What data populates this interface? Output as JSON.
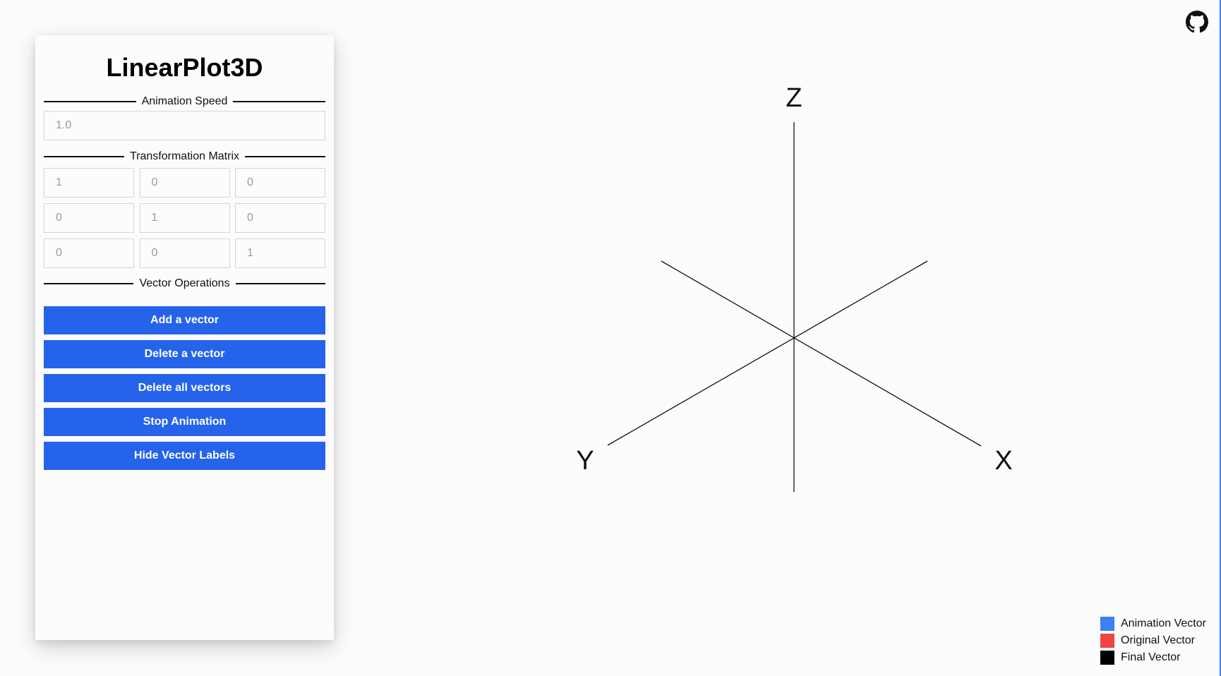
{
  "app": {
    "title": "LinearPlot3D"
  },
  "sections": {
    "animation_speed": "Animation Speed",
    "transformation_matrix": "Transformation Matrix",
    "vector_operations": "Vector Operations"
  },
  "speed": {
    "placeholder": "1.0",
    "value": ""
  },
  "matrix": {
    "placeholders": [
      [
        "1",
        "0",
        "0"
      ],
      [
        "0",
        "1",
        "0"
      ],
      [
        "0",
        "0",
        "1"
      ]
    ]
  },
  "buttons": {
    "add_vector": "Add a vector",
    "delete_vector": "Delete a vector",
    "delete_all": "Delete all vectors",
    "stop_animation": "Stop Animation",
    "hide_labels": "Hide Vector Labels"
  },
  "axes": {
    "x_label": "X",
    "y_label": "Y",
    "z_label": "Z"
  },
  "legend": {
    "items": [
      {
        "label": "Animation Vector",
        "color": "#3b82f6"
      },
      {
        "label": "Original Vector",
        "color": "#ef4444"
      },
      {
        "label": "Final Vector",
        "color": "#000000"
      }
    ]
  },
  "colors": {
    "button": "#2563eb",
    "button_text": "#ffffff",
    "axis": "#111111"
  },
  "icons": {
    "repo_link": "github-icon"
  }
}
